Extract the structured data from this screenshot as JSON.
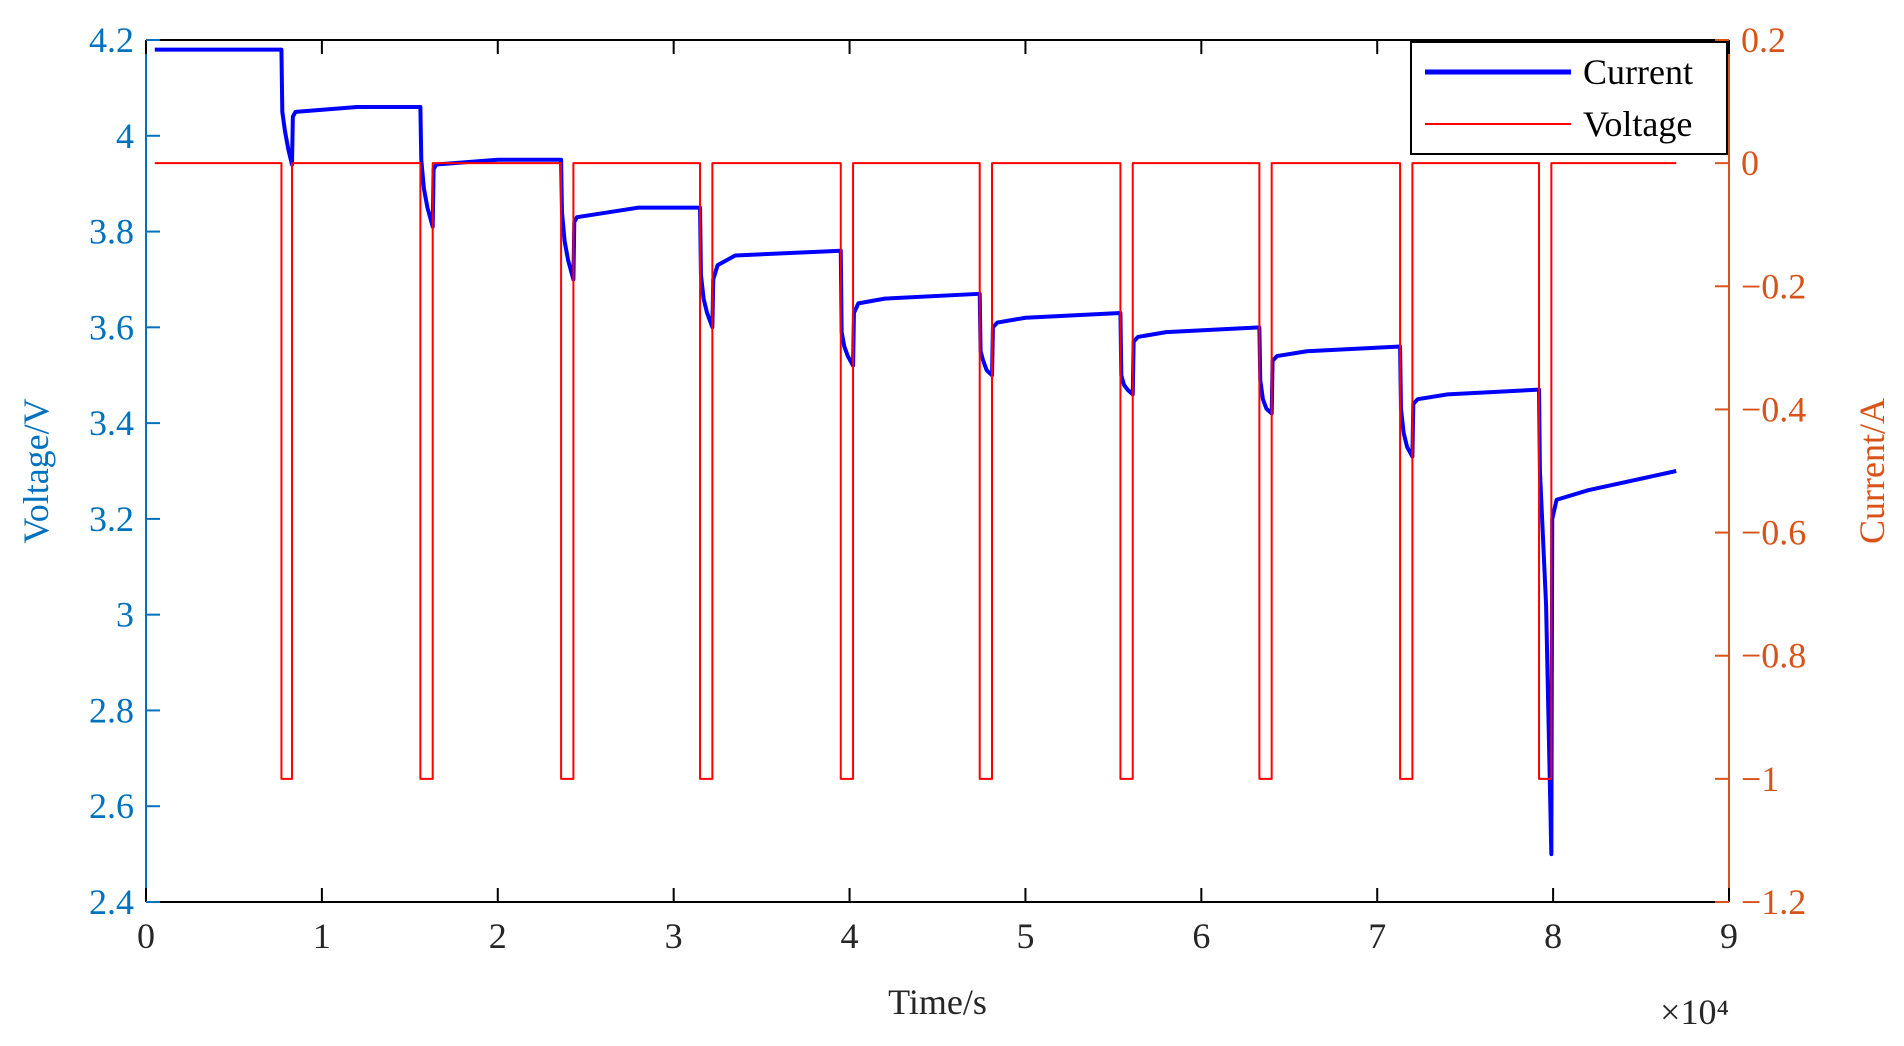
{
  "chart_data": {
    "type": "line",
    "xlabel": "Time/s",
    "ylabel": "Voltage/V",
    "y2label": "Current/A",
    "x_multiplier": "×10⁴",
    "xlim": [
      0,
      9
    ],
    "xticks": [
      0,
      1,
      2,
      3,
      4,
      5,
      6,
      7,
      8,
      9
    ],
    "ylim": [
      2.4,
      4.2
    ],
    "yticks": [
      2.4,
      2.6,
      2.8,
      3,
      3.2,
      3.4,
      3.6,
      3.8,
      4,
      4.2
    ],
    "y2lim": [
      -1.2,
      0.2
    ],
    "y2ticks": [
      {
        "value": -1.2,
        "label": "−1.2"
      },
      {
        "value": -1,
        "label": "−1"
      },
      {
        "value": -0.8,
        "label": "−0.8"
      },
      {
        "value": -0.6,
        "label": "−0.6"
      },
      {
        "value": -0.4,
        "label": "−0.4"
      },
      {
        "value": -0.2,
        "label": "−0.2"
      },
      0,
      0.2
    ],
    "y_axis_color": "#0072bd",
    "y2_axis_color": "#d95319",
    "legend": "upper right",
    "series": [
      {
        "name": "Current",
        "color": "#0000ff",
        "axis": "y",
        "x": [
          0.05,
          0.77,
          0.775,
          0.79,
          0.81,
          0.83,
          0.835,
          0.85,
          1.2,
          1.56,
          1.565,
          1.58,
          1.6,
          1.63,
          1.635,
          1.65,
          2.0,
          2.36,
          2.365,
          2.38,
          2.4,
          2.43,
          2.435,
          2.45,
          2.8,
          3.15,
          3.155,
          3.17,
          3.19,
          3.22,
          3.225,
          3.25,
          3.35,
          3.95,
          3.955,
          3.97,
          3.99,
          4.02,
          4.025,
          4.05,
          4.2,
          4.74,
          4.745,
          4.76,
          4.78,
          4.81,
          4.815,
          4.84,
          5.0,
          5.54,
          5.545,
          5.56,
          5.58,
          5.61,
          5.615,
          5.64,
          5.8,
          6.33,
          6.335,
          6.35,
          6.37,
          6.4,
          6.405,
          6.43,
          6.6,
          7.13,
          7.135,
          7.15,
          7.17,
          7.2,
          7.205,
          7.23,
          7.4,
          7.92,
          7.925,
          7.94,
          7.96,
          7.99,
          7.995,
          8.02,
          8.2,
          8.7
        ],
        "values": [
          4.18,
          4.18,
          4.05,
          4.01,
          3.97,
          3.94,
          4.04,
          4.05,
          4.06,
          4.06,
          3.95,
          3.89,
          3.85,
          3.81,
          3.93,
          3.94,
          3.95,
          3.95,
          3.84,
          3.78,
          3.74,
          3.7,
          3.82,
          3.83,
          3.85,
          3.85,
          3.71,
          3.66,
          3.63,
          3.6,
          3.7,
          3.73,
          3.75,
          3.76,
          3.59,
          3.56,
          3.54,
          3.52,
          3.63,
          3.65,
          3.66,
          3.67,
          3.55,
          3.53,
          3.51,
          3.5,
          3.6,
          3.61,
          3.62,
          3.63,
          3.5,
          3.48,
          3.47,
          3.46,
          3.57,
          3.58,
          3.59,
          3.6,
          3.49,
          3.45,
          3.43,
          3.42,
          3.53,
          3.54,
          3.55,
          3.56,
          3.43,
          3.38,
          3.35,
          3.33,
          3.44,
          3.45,
          3.46,
          3.47,
          3.3,
          3.18,
          3.02,
          2.5,
          3.2,
          3.24,
          3.26,
          3.3
        ]
      },
      {
        "name": "Voltage",
        "color": "#ff0000",
        "axis": "y2",
        "x": [
          0.05,
          0.77,
          0.77,
          0.83,
          0.83,
          1.56,
          1.56,
          1.63,
          1.63,
          2.36,
          2.36,
          2.43,
          2.43,
          3.15,
          3.15,
          3.22,
          3.22,
          3.95,
          3.95,
          4.02,
          4.02,
          4.74,
          4.74,
          4.81,
          4.81,
          5.54,
          5.54,
          5.61,
          5.61,
          6.33,
          6.33,
          6.4,
          6.4,
          7.13,
          7.13,
          7.2,
          7.2,
          7.92,
          7.92,
          7.99,
          7.99,
          8.7
        ],
        "values": [
          0,
          0,
          -1,
          -1,
          0,
          0,
          -1,
          -1,
          0,
          0,
          -1,
          -1,
          0,
          0,
          -1,
          -1,
          0,
          0,
          -1,
          -1,
          0,
          0,
          -1,
          -1,
          0,
          0,
          -1,
          -1,
          0,
          0,
          -1,
          -1,
          0,
          0,
          -1,
          -1,
          0,
          0,
          -1,
          -1,
          0,
          0
        ]
      }
    ]
  }
}
